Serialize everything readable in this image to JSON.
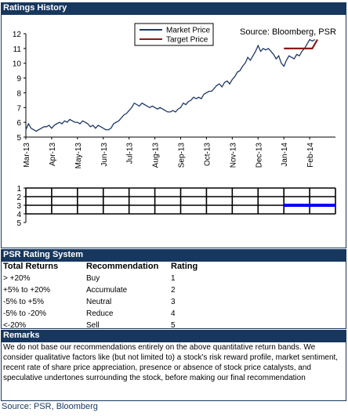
{
  "ratings_history": {
    "header": "Ratings History"
  },
  "chart_source": "Source: Bloomberg, PSR",
  "chart_data": {
    "type": "line",
    "ylim": [
      5,
      12
    ],
    "yticks": [
      5,
      6,
      7,
      8,
      9,
      10,
      11,
      12
    ],
    "x_tick_labels": [
      "Mar-13",
      "Apr-13",
      "May-13",
      "Jun-13",
      "Jul-13",
      "Aug-13",
      "Sep-13",
      "Oct-13",
      "Nov-13",
      "Dec-13",
      "Jan-14",
      "Feb-14"
    ],
    "legend": [
      "Market Price",
      "Target Price"
    ],
    "series": [
      {
        "name": "Market Price",
        "color": "#1f3864",
        "x": [
          0,
          0.1,
          0.2,
          0.3,
          0.4,
          0.5,
          0.6,
          0.7,
          0.8,
          0.9,
          1.0,
          1.1,
          1.2,
          1.3,
          1.4,
          1.5,
          1.6,
          1.7,
          1.8,
          1.9,
          2.0,
          2.1,
          2.2,
          2.3,
          2.4,
          2.5,
          2.6,
          2.7,
          2.8,
          2.9,
          3.0,
          3.1,
          3.2,
          3.3,
          3.4,
          3.5,
          3.6,
          3.7,
          3.8,
          3.9,
          4.0,
          4.1,
          4.2,
          4.3,
          4.4,
          4.5,
          4.6,
          4.7,
          4.8,
          4.9,
          5.0,
          5.1,
          5.2,
          5.3,
          5.4,
          5.5,
          5.6,
          5.7,
          5.8,
          5.9,
          6.0,
          6.1,
          6.2,
          6.3,
          6.4,
          6.5,
          6.6,
          6.7,
          6.8,
          6.9,
          7.0,
          7.1,
          7.2,
          7.3,
          7.4,
          7.5,
          7.6,
          7.7,
          7.8,
          7.9,
          8.0,
          8.1,
          8.2,
          8.3,
          8.4,
          8.5,
          8.6,
          8.7,
          8.8,
          8.9,
          9.0,
          9.1,
          9.2,
          9.3,
          9.4,
          9.5,
          9.6,
          9.7,
          9.8,
          9.9,
          10.0,
          10.1,
          10.2,
          10.3,
          10.4,
          10.5,
          10.6,
          10.7,
          10.8,
          10.9,
          11.0,
          11.1,
          11.2
        ],
        "values": [
          5.5,
          5.9,
          5.6,
          5.5,
          5.4,
          5.5,
          5.6,
          5.7,
          5.7,
          5.8,
          5.6,
          5.8,
          5.9,
          6.0,
          5.9,
          6.1,
          6.0,
          6.2,
          6.1,
          6.0,
          6.0,
          5.9,
          6.1,
          6.0,
          5.9,
          5.7,
          5.8,
          5.6,
          5.8,
          5.7,
          5.6,
          5.5,
          5.5,
          5.6,
          5.9,
          6.0,
          6.1,
          6.3,
          6.5,
          6.6,
          6.8,
          7.0,
          7.3,
          7.2,
          7.1,
          7.3,
          7.2,
          7.1,
          7.0,
          7.1,
          7.0,
          6.9,
          7.0,
          6.9,
          6.8,
          6.7,
          6.7,
          6.8,
          6.7,
          6.9,
          7.0,
          7.3,
          7.2,
          7.4,
          7.5,
          7.7,
          7.6,
          7.7,
          7.6,
          7.9,
          8.0,
          8.1,
          8.1,
          8.3,
          8.5,
          8.6,
          8.4,
          8.7,
          8.8,
          8.6,
          8.9,
          9.1,
          9.4,
          9.5,
          9.8,
          10.0,
          10.4,
          10.2,
          10.5,
          10.8,
          11.2,
          10.8,
          11.0,
          10.9,
          11.0,
          10.8,
          10.6,
          10.3,
          10.5,
          10.0,
          9.8,
          10.2,
          10.5,
          10.4,
          10.3,
          10.6,
          10.5,
          10.8,
          11.0,
          11.3,
          11.6,
          11.5,
          11.6
        ]
      },
      {
        "name": "Target Price",
        "color": "#8b1a1a",
        "x": [
          10.0,
          11.1,
          11.1,
          11.3
        ],
        "values": [
          11.0,
          11.0,
          11.0,
          11.6
        ]
      }
    ]
  },
  "rating_band": {
    "yticks": [
      1,
      2,
      3,
      4,
      5
    ],
    "current_rating": 3,
    "current_from_month_index": 10
  },
  "psr_rating": {
    "header": "PSR Rating System",
    "columns": [
      "Total Returns",
      "Recommendation",
      "Rating"
    ],
    "rows": [
      [
        "> +20%",
        "Buy",
        "1"
      ],
      [
        "+5% to +20%",
        "Accumulate",
        "2"
      ],
      [
        "-5% to +5%",
        "Neutral",
        "3"
      ],
      [
        "-5% to -20%",
        "Reduce",
        "4"
      ],
      [
        "<-20%",
        "Sell",
        "5"
      ]
    ]
  },
  "remarks": {
    "header": "Remarks",
    "text": "We do not base our recommendations entirely on the  above quantitative return bands. We consider qualitative factors like (but not limited to) a stock's risk reward profile, market sentiment, recent rate of share price appreciation, presence or absence of stock price catalysts, and speculative undertones surrounding the stock, before making our final recommendation"
  },
  "footer": {
    "source": "Source: PSR, Bloomberg"
  }
}
